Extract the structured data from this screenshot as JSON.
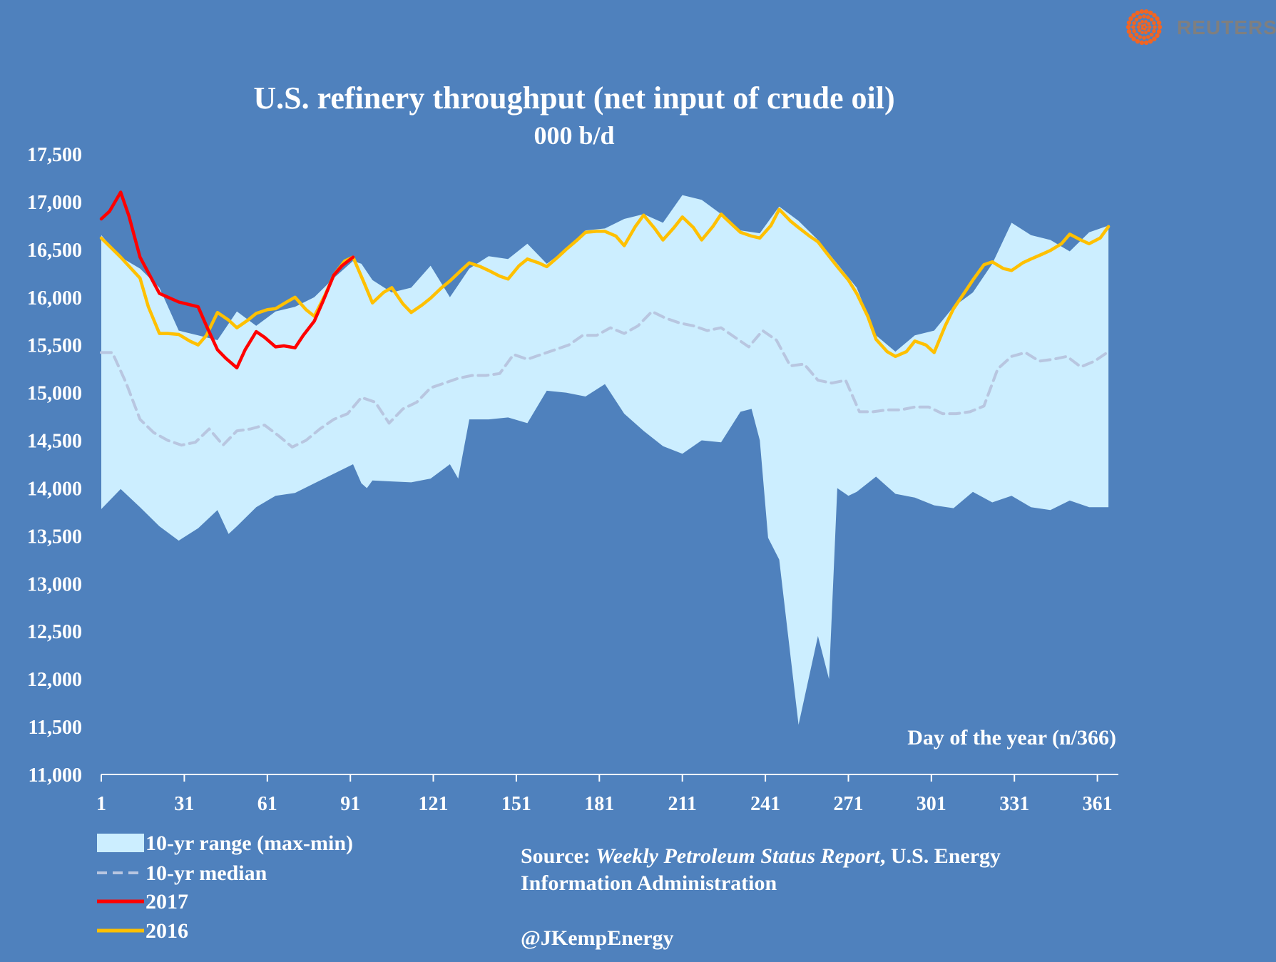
{
  "brand": {
    "name": "REUTERS",
    "logo_color": "#f26522"
  },
  "colors": {
    "background": "#4f81bd",
    "range": "#cceeff",
    "median": "#b8c6e0",
    "y2017": "#ff0000",
    "y2016": "#ffc000",
    "text": "#ffffff"
  },
  "legend": {
    "range_label": "10-yr range (max-min)",
    "median_label": "10-yr median",
    "y2017_label": "2017",
    "y2016_label": "2016"
  },
  "source": {
    "prefix": "Source: ",
    "report": "Weekly Petroleum Status Report",
    "suffix": ", U.S. Energy",
    "line2": "Information Administration",
    "handle": "@JKempEnergy"
  },
  "chart_data": {
    "type": "line",
    "title": "U.S. refinery throughput (net input of  crude oil)",
    "subtitle": "000 b/d",
    "xlabel": "Day of the year (n/366)",
    "ylabel": "",
    "xlim": [
      1,
      366
    ],
    "ylim": [
      11000,
      17500
    ],
    "x_ticks": [
      1,
      31,
      61,
      91,
      121,
      151,
      181,
      211,
      241,
      271,
      301,
      331,
      361
    ],
    "x_tick_labels": [
      "1",
      "31",
      "61",
      "91",
      "121",
      "151",
      "181",
      "211",
      "241",
      "271",
      "301",
      "331",
      "361"
    ],
    "y_ticks": [
      11000,
      11500,
      12000,
      12500,
      13000,
      13500,
      14000,
      14500,
      15000,
      15500,
      16000,
      16500,
      17000,
      17500
    ],
    "y_tick_labels": [
      "11,000",
      "11,500",
      "12,000",
      "12,500",
      "13,000",
      "13,500",
      "14,000",
      "14,500",
      "15,000",
      "15,500",
      "16,000",
      "16,500",
      "17,000",
      "17,500"
    ],
    "series": [
      {
        "name": "10-yr range max",
        "x": [
          1,
          8,
          15,
          22,
          29,
          36,
          43,
          50,
          57,
          64,
          71,
          78,
          85,
          92,
          95,
          99,
          106,
          113,
          120,
          127,
          134,
          141,
          148,
          155,
          162,
          169,
          176,
          183,
          190,
          197,
          204,
          211,
          218,
          225,
          232,
          239,
          246,
          253,
          260,
          267,
          274,
          281,
          288,
          295,
          302,
          309,
          316,
          323,
          330,
          337,
          344,
          351,
          358,
          365
        ],
        "y": [
          16650,
          16420,
          16300,
          16100,
          15650,
          15600,
          15550,
          15850,
          15700,
          15850,
          15900,
          16000,
          16200,
          16380,
          16350,
          16180,
          16050,
          16100,
          16330,
          16000,
          16300,
          16430,
          16400,
          16560,
          16350,
          16500,
          16700,
          16720,
          16820,
          16870,
          16780,
          17070,
          17020,
          16870,
          16700,
          16670,
          16950,
          16800,
          16600,
          16350,
          16100,
          15600,
          15430,
          15600,
          15650,
          15900,
          16050,
          16350,
          16780,
          16650,
          16600,
          16480,
          16680,
          16750
        ]
      },
      {
        "name": "10-yr range min",
        "x": [
          1,
          8,
          15,
          22,
          29,
          36,
          43,
          47,
          50,
          57,
          64,
          71,
          78,
          85,
          92,
          95,
          97,
          99,
          106,
          113,
          120,
          127,
          130,
          134,
          141,
          148,
          155,
          162,
          169,
          176,
          183,
          190,
          197,
          204,
          211,
          218,
          225,
          232,
          236,
          239,
          242,
          246,
          253,
          260,
          264,
          267,
          271,
          274,
          281,
          288,
          295,
          302,
          309,
          316,
          323,
          330,
          337,
          344,
          351,
          358,
          365
        ],
        "y": [
          13780,
          13990,
          13800,
          13600,
          13450,
          13580,
          13770,
          13520,
          13600,
          13800,
          13920,
          13950,
          14050,
          14150,
          14250,
          14050,
          14000,
          14080,
          14070,
          14060,
          14100,
          14250,
          14100,
          14720,
          14720,
          14740,
          14680,
          15020,
          15000,
          14960,
          15090,
          14780,
          14600,
          14440,
          14360,
          14500,
          14480,
          14800,
          14830,
          14500,
          13480,
          13250,
          11520,
          12450,
          12000,
          14000,
          13920,
          13960,
          14120,
          13940,
          13900,
          13820,
          13790,
          13960,
          13850,
          13920,
          13800,
          13770,
          13870,
          13800,
          13800
        ]
      },
      {
        "name": "10-yr median",
        "x": [
          1,
          5,
          10,
          15,
          20,
          25,
          30,
          35,
          40,
          45,
          50,
          55,
          60,
          65,
          70,
          75,
          80,
          85,
          90,
          95,
          100,
          105,
          110,
          115,
          120,
          125,
          130,
          135,
          140,
          145,
          150,
          155,
          160,
          165,
          170,
          175,
          180,
          185,
          190,
          195,
          200,
          205,
          210,
          215,
          220,
          225,
          230,
          235,
          240,
          245,
          250,
          255,
          260,
          265,
          270,
          275,
          280,
          285,
          290,
          295,
          300,
          305,
          310,
          315,
          320,
          325,
          330,
          335,
          340,
          345,
          350,
          355,
          360,
          365
        ],
        "y": [
          15420,
          15420,
          15100,
          14720,
          14580,
          14500,
          14450,
          14480,
          14620,
          14450,
          14600,
          14620,
          14660,
          14550,
          14430,
          14500,
          14620,
          14720,
          14780,
          14950,
          14900,
          14680,
          14830,
          14900,
          15050,
          15100,
          15150,
          15180,
          15180,
          15200,
          15400,
          15350,
          15400,
          15450,
          15500,
          15600,
          15600,
          15680,
          15620,
          15700,
          15850,
          15780,
          15730,
          15700,
          15650,
          15680,
          15580,
          15480,
          15650,
          15550,
          15280,
          15300,
          15130,
          15100,
          15130,
          14800,
          14800,
          14820,
          14820,
          14850,
          14850,
          14780,
          14780,
          14800,
          14860,
          15250,
          15380,
          15420,
          15330,
          15350,
          15380,
          15270,
          15330,
          15430
        ]
      },
      {
        "name": "2017",
        "x": [
          1,
          4,
          8,
          11,
          15,
          22,
          29,
          36,
          39,
          43,
          46,
          50,
          53,
          57,
          60,
          64,
          67,
          71,
          74,
          78,
          81,
          85,
          88,
          92
        ],
        "y": [
          16820,
          16900,
          17100,
          16850,
          16420,
          16040,
          15950,
          15900,
          15700,
          15450,
          15360,
          15260,
          15450,
          15640,
          15580,
          15480,
          15490,
          15470,
          15600,
          15750,
          15950,
          16230,
          16330,
          16420
        ]
      },
      {
        "name": "2016",
        "x": [
          1,
          8,
          15,
          18,
          22,
          25,
          29,
          33,
          36,
          39,
          43,
          47,
          50,
          54,
          57,
          61,
          64,
          68,
          71,
          75,
          78,
          82,
          85,
          89,
          92,
          96,
          99,
          103,
          106,
          110,
          113,
          117,
          120,
          124,
          127,
          131,
          134,
          138,
          141,
          145,
          148,
          152,
          155,
          159,
          162,
          166,
          169,
          173,
          176,
          180,
          183,
          187,
          190,
          194,
          197,
          201,
          204,
          208,
          211,
          215,
          218,
          222,
          225,
          229,
          232,
          236,
          239,
          243,
          246,
          250,
          253,
          257,
          260,
          264,
          267,
          271,
          274,
          278,
          281,
          285,
          288,
          292,
          295,
          299,
          302,
          306,
          309,
          313,
          316,
          320,
          323,
          327,
          330,
          334,
          337,
          341,
          344,
          348,
          351,
          355,
          358,
          362,
          365
        ],
        "y": [
          16620,
          16420,
          16200,
          15900,
          15620,
          15620,
          15610,
          15540,
          15500,
          15600,
          15840,
          15760,
          15680,
          15760,
          15830,
          15870,
          15880,
          15950,
          16000,
          15870,
          15800,
          16030,
          16230,
          16380,
          16420,
          16150,
          15940,
          16050,
          16100,
          15930,
          15840,
          15920,
          15990,
          16100,
          16170,
          16280,
          16360,
          16320,
          16280,
          16220,
          16190,
          16330,
          16400,
          16360,
          16320,
          16420,
          16500,
          16600,
          16680,
          16690,
          16690,
          16640,
          16540,
          16740,
          16860,
          16720,
          16600,
          16730,
          16840,
          16730,
          16600,
          16740,
          16870,
          16760,
          16680,
          16640,
          16620,
          16750,
          16920,
          16800,
          16730,
          16640,
          16580,
          16430,
          16320,
          16180,
          16040,
          15800,
          15560,
          15430,
          15380,
          15430,
          15540,
          15500,
          15420,
          15700,
          15880,
          16050,
          16180,
          16340,
          16370,
          16300,
          16280,
          16360,
          16400,
          16450,
          16490,
          16560,
          16660,
          16600,
          16560,
          16620,
          16740
        ]
      }
    ]
  }
}
